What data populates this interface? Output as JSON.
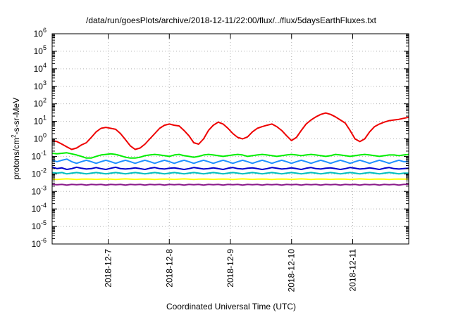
{
  "chart_data": {
    "type": "line",
    "title": "/data/run/goesPlots/archive/2018-12-11/22:00/flux/../flux/5daysEarthFluxes.txt",
    "xlabel": "Coordinated Universal Time (UTC)",
    "ylabel": {
      "prefix": "protons/cm",
      "sup": "2",
      "suffix": "-s-sr-MeV"
    },
    "y_scale": "log",
    "ylim": [
      1e-06,
      1000000.0
    ],
    "y_ticks": [
      {
        "base": "10",
        "exp": "-6",
        "value": 1e-06
      },
      {
        "base": "10",
        "exp": "-5",
        "value": 1e-05
      },
      {
        "base": "10",
        "exp": "-4",
        "value": 0.0001
      },
      {
        "base": "10",
        "exp": "-3",
        "value": 0.001
      },
      {
        "base": "10",
        "exp": "-2",
        "value": 0.01
      },
      {
        "base": "10",
        "exp": "-1",
        "value": 0.1
      },
      {
        "base": "10",
        "exp": "0",
        "value": 1
      },
      {
        "base": "10",
        "exp": "1",
        "value": 10
      },
      {
        "base": "10",
        "exp": "2",
        "value": 100
      },
      {
        "base": "10",
        "exp": "3",
        "value": 1000
      },
      {
        "base": "10",
        "exp": "4",
        "value": 10000
      },
      {
        "base": "10",
        "exp": "5",
        "value": 100000
      },
      {
        "base": "10",
        "exp": "6",
        "value": 1000000
      }
    ],
    "x_range": [
      "2018-12-06 02:00",
      "2018-12-11 22:00"
    ],
    "x_ticks": [
      "2018-12-7",
      "2018-12-8",
      "2018-12-9",
      "2018-12-10",
      "2018-12-11"
    ],
    "grid": true,
    "series": [
      {
        "color": "#ee0000",
        "values": [
          0.8,
          0.7,
          0.5,
          0.35,
          0.25,
          0.3,
          0.45,
          0.6,
          1.2,
          2.5,
          4.0,
          4.5,
          4.0,
          3.5,
          2.0,
          0.9,
          0.4,
          0.25,
          0.3,
          0.5,
          1.0,
          2.0,
          4.0,
          6.0,
          7.0,
          6.0,
          5.5,
          3.0,
          1.5,
          0.6,
          0.5,
          1.0,
          3.0,
          6.0,
          9.0,
          7.0,
          4.0,
          2.0,
          1.2,
          1.0,
          1.3,
          2.5,
          4.0,
          5.0,
          6.0,
          7.0,
          5.0,
          3.0,
          1.5,
          0.8,
          1.2,
          3.0,
          7.0,
          12.0,
          18.0,
          25.0,
          30.0,
          25.0,
          18.0,
          12.0,
          8.0,
          3.0,
          1.0,
          0.7,
          1.0,
          2.5,
          5.0,
          7.0,
          9.0,
          11.0,
          12.0,
          13.0,
          15.0,
          17.0
        ]
      },
      {
        "color": "#00ee00",
        "values": [
          0.15,
          0.14,
          0.15,
          0.16,
          0.14,
          0.12,
          0.1,
          0.08,
          0.08,
          0.1,
          0.12,
          0.13,
          0.14,
          0.13,
          0.11,
          0.09,
          0.08,
          0.08,
          0.09,
          0.11,
          0.12,
          0.13,
          0.12,
          0.11,
          0.1,
          0.12,
          0.13,
          0.11,
          0.1,
          0.09,
          0.1,
          0.12,
          0.13,
          0.12,
          0.11,
          0.1,
          0.11,
          0.12,
          0.13,
          0.12,
          0.1,
          0.11,
          0.12,
          0.13,
          0.12,
          0.11,
          0.1,
          0.11,
          0.12,
          0.13,
          0.12,
          0.11,
          0.12,
          0.13,
          0.12,
          0.11,
          0.1,
          0.11,
          0.13,
          0.12,
          0.11,
          0.1,
          0.11,
          0.12,
          0.13,
          0.12,
          0.11,
          0.1,
          0.11,
          0.12,
          0.12,
          0.11,
          0.12,
          0.13
        ]
      },
      {
        "color": "#1e90ff",
        "values": [
          0.06,
          0.05,
          0.06,
          0.07,
          0.05,
          0.04,
          0.05,
          0.06,
          0.05,
          0.04,
          0.05,
          0.06,
          0.05,
          0.04,
          0.05,
          0.06,
          0.05,
          0.04,
          0.05,
          0.06,
          0.05,
          0.04,
          0.05,
          0.06,
          0.05,
          0.04,
          0.05,
          0.06,
          0.05,
          0.04,
          0.05,
          0.06,
          0.05,
          0.04,
          0.05,
          0.06,
          0.05,
          0.04,
          0.05,
          0.06,
          0.05,
          0.04,
          0.05,
          0.06,
          0.05,
          0.04,
          0.05,
          0.06,
          0.05,
          0.04,
          0.05,
          0.06,
          0.05,
          0.04,
          0.05,
          0.06,
          0.05,
          0.04,
          0.05,
          0.06,
          0.05,
          0.04,
          0.05,
          0.06,
          0.05,
          0.04,
          0.05,
          0.06,
          0.05,
          0.04,
          0.05,
          0.06,
          0.05,
          0.05
        ]
      },
      {
        "color": "#0000cc",
        "values": [
          0.025,
          0.02,
          0.022,
          0.018,
          0.02,
          0.024,
          0.021,
          0.019,
          0.02,
          0.023,
          0.02,
          0.018,
          0.021,
          0.024,
          0.02,
          0.019,
          0.02,
          0.022,
          0.02,
          0.018,
          0.021,
          0.023,
          0.02,
          0.019,
          0.021,
          0.022,
          0.02,
          0.018,
          0.02,
          0.023,
          0.021,
          0.019,
          0.02,
          0.022,
          0.02,
          0.018,
          0.021,
          0.023,
          0.02,
          0.019,
          0.021,
          0.022,
          0.02,
          0.018,
          0.02,
          0.023,
          0.021,
          0.019,
          0.02,
          0.022,
          0.02,
          0.018,
          0.021,
          0.023,
          0.02,
          0.019,
          0.021,
          0.022,
          0.02,
          0.018,
          0.02,
          0.023,
          0.021,
          0.019,
          0.02,
          0.022,
          0.02,
          0.018,
          0.021,
          0.023,
          0.02,
          0.019,
          0.02,
          0.021
        ]
      },
      {
        "color": "#00c0c0",
        "values": [
          0.012,
          0.011,
          0.012,
          0.01,
          0.011,
          0.012,
          0.011,
          0.01,
          0.011,
          0.012,
          0.011,
          0.01,
          0.011,
          0.012,
          0.011,
          0.01,
          0.011,
          0.012,
          0.011,
          0.01,
          0.011,
          0.012,
          0.011,
          0.01,
          0.011,
          0.012,
          0.011,
          0.01,
          0.011,
          0.012,
          0.011,
          0.01,
          0.011,
          0.012,
          0.011,
          0.01,
          0.011,
          0.012,
          0.011,
          0.01,
          0.011,
          0.012,
          0.011,
          0.01,
          0.011,
          0.012,
          0.011,
          0.01,
          0.011,
          0.012,
          0.011,
          0.01,
          0.011,
          0.012,
          0.011,
          0.01,
          0.011,
          0.012,
          0.011,
          0.01,
          0.011,
          0.012,
          0.011,
          0.01,
          0.011,
          0.012,
          0.011,
          0.01,
          0.011,
          0.012,
          0.011,
          0.01,
          0.011,
          0.011
        ]
      },
      {
        "color": "#ffff00",
        "values": [
          0.005,
          0.0048,
          0.005,
          0.0052,
          0.005,
          0.0048,
          0.005,
          0.0051,
          0.005,
          0.0049,
          0.005,
          0.0051,
          0.005,
          0.0048,
          0.005,
          0.0052,
          0.005,
          0.0049,
          0.005,
          0.0051,
          0.005,
          0.0048,
          0.005,
          0.0051,
          0.005,
          0.0049,
          0.005,
          0.0052,
          0.005,
          0.0048,
          0.005,
          0.0051,
          0.005,
          0.0049,
          0.005,
          0.0051,
          0.005,
          0.0048,
          0.005,
          0.0052,
          0.005,
          0.0049,
          0.005,
          0.0051,
          0.005,
          0.0048,
          0.005,
          0.0051,
          0.005,
          0.0049,
          0.005,
          0.0052,
          0.005,
          0.0048,
          0.005,
          0.0051,
          0.005,
          0.0049,
          0.005,
          0.0051,
          0.005,
          0.0048,
          0.005,
          0.0052,
          0.005,
          0.0049,
          0.005,
          0.0051,
          0.005,
          0.0048,
          0.005,
          0.0051,
          0.005,
          0.005
        ]
      },
      {
        "color": "#8b1a8b",
        "values": [
          0.0025,
          0.0024,
          0.0025,
          0.0023,
          0.0025,
          0.0024,
          0.0025,
          0.0023,
          0.0025,
          0.0024,
          0.0025,
          0.0023,
          0.0025,
          0.0024,
          0.0025,
          0.0023,
          0.0025,
          0.0024,
          0.0025,
          0.0023,
          0.0025,
          0.0024,
          0.0025,
          0.0023,
          0.0025,
          0.0024,
          0.0025,
          0.0023,
          0.0025,
          0.0024,
          0.0025,
          0.0023,
          0.0025,
          0.0024,
          0.0025,
          0.0023,
          0.0025,
          0.0024,
          0.0025,
          0.0023,
          0.0025,
          0.0024,
          0.0025,
          0.0023,
          0.0025,
          0.0024,
          0.0025,
          0.0023,
          0.0025,
          0.0024,
          0.0025,
          0.0023,
          0.0025,
          0.0024,
          0.0025,
          0.0023,
          0.0025,
          0.0024,
          0.0025,
          0.0023,
          0.0025,
          0.0024,
          0.0025,
          0.0023,
          0.0025,
          0.0024,
          0.0025,
          0.0023,
          0.0025,
          0.0024,
          0.0025,
          0.0023,
          0.0025,
          0.0025
        ]
      }
    ]
  }
}
